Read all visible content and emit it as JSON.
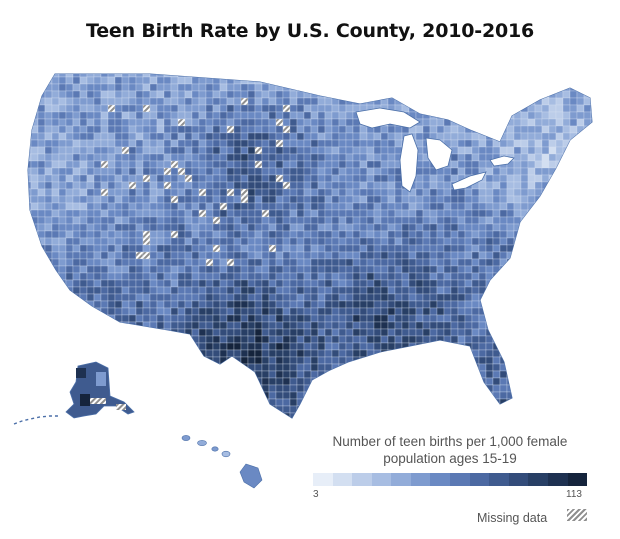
{
  "title": "Teen Birth Rate by U.S. County, 2010-2016",
  "legend": {
    "title_line1": "Number of teen births per 1,000 female",
    "title_line2": "population ages 15-19",
    "min": "3",
    "max": "113",
    "scale_colors": [
      "#e7eef8",
      "#d3dff1",
      "#bccde9",
      "#a7bde2",
      "#92acd9",
      "#7e9bcf",
      "#6a89c3",
      "#5b79b4",
      "#4c69a2",
      "#3f5b8f",
      "#334c7a",
      "#283f65",
      "#1e3151",
      "#15243c"
    ],
    "missing_label": "Missing data"
  },
  "colors": {
    "outline": "#4b6fa8",
    "high": "#15243c",
    "low": "#e7eef8",
    "missing": "#8f8f8f"
  }
}
